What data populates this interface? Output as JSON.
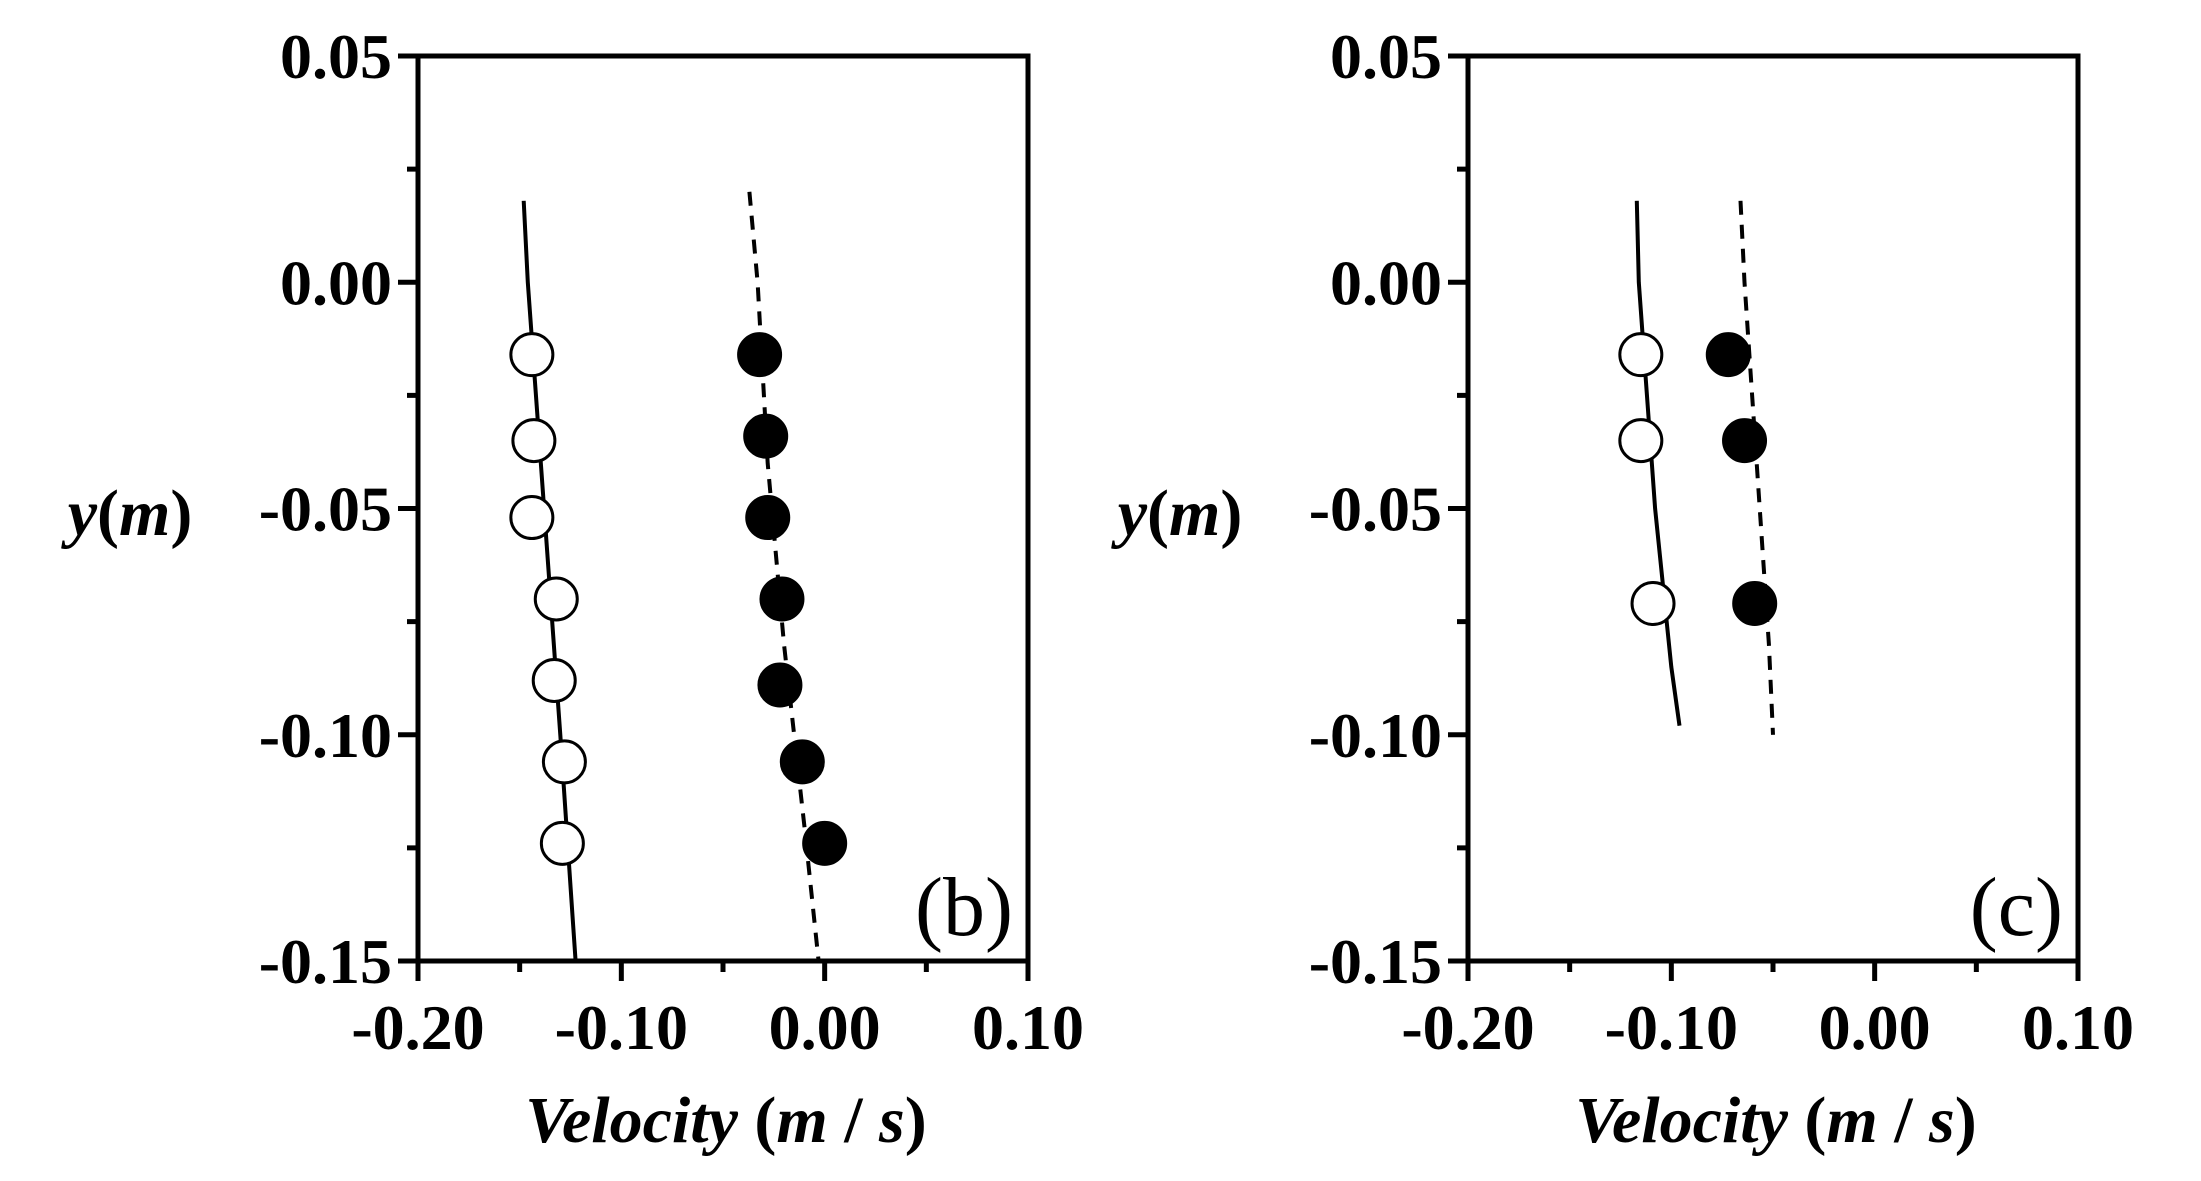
{
  "chart_data": [
    {
      "type": "scatter",
      "panel_label": "(b)",
      "xlabel": "Velocity (m / s)",
      "xlabel_parts": {
        "var": "Velocity",
        "open": " (",
        "num": "m",
        "sep": " / ",
        "den": "s",
        "close": ")"
      },
      "ylabel": "y (m)",
      "ylabel_parts": {
        "var": "y",
        "open": "(",
        "unit": "m",
        "close": ")"
      },
      "xlim": [
        -0.2,
        0.1
      ],
      "ylim": [
        -0.15,
        0.05
      ],
      "x_ticks": [
        -0.2,
        -0.1,
        0.0,
        0.1
      ],
      "x_tick_labels": [
        "-0.20",
        "-0.10",
        "0.00",
        "0.10"
      ],
      "y_ticks": [
        0.05,
        0.0,
        -0.05,
        -0.1,
        -0.15
      ],
      "y_tick_labels": [
        "0.05",
        "0.00",
        "-0.05",
        "-0.10",
        "-0.15"
      ],
      "series": [
        {
          "name": "open-circles",
          "marker": "open-circle",
          "x": [
            -0.144,
            -0.143,
            -0.144,
            -0.132,
            -0.133,
            -0.128,
            -0.129
          ],
          "y": [
            -0.016,
            -0.035,
            -0.052,
            -0.07,
            -0.088,
            -0.106,
            -0.124
          ]
        },
        {
          "name": "filled-circles",
          "marker": "filled-circle",
          "x": [
            -0.032,
            -0.029,
            -0.028,
            -0.021,
            -0.022,
            -0.011,
            0.0
          ],
          "y": [
            -0.016,
            -0.034,
            -0.052,
            -0.07,
            -0.089,
            -0.106,
            -0.124
          ]
        },
        {
          "name": "solid-line",
          "line": "solid",
          "x": [
            -0.148,
            -0.146,
            -0.138,
            -0.13,
            -0.124,
            -0.1225
          ],
          "y": [
            0.018,
            0.0,
            -0.05,
            -0.1,
            -0.14,
            -0.15
          ]
        },
        {
          "name": "dashed-line",
          "line": "dashed",
          "x": [
            -0.037,
            -0.033,
            -0.028,
            -0.02,
            -0.01,
            -0.003
          ],
          "y": [
            0.02,
            0.0,
            -0.04,
            -0.08,
            -0.12,
            -0.15
          ]
        }
      ]
    },
    {
      "type": "scatter",
      "panel_label": "(c)",
      "xlabel": "Velocity (m / s)",
      "xlabel_parts": {
        "var": "Velocity",
        "open": " (",
        "num": "m",
        "sep": " / ",
        "den": "s",
        "close": ")"
      },
      "ylabel": "y (m)",
      "ylabel_parts": {
        "var": "y",
        "open": "(",
        "unit": "m",
        "close": ")"
      },
      "xlim": [
        -0.2,
        0.1
      ],
      "ylim": [
        -0.15,
        0.05
      ],
      "x_ticks": [
        -0.2,
        -0.1,
        0.0,
        0.1
      ],
      "x_tick_labels": [
        "-0.20",
        "-0.10",
        "0.00",
        "0.10"
      ],
      "y_ticks": [
        0.05,
        0.0,
        -0.05,
        -0.1,
        -0.15
      ],
      "y_tick_labels": [
        "0.05",
        "0.00",
        "-0.05",
        "-0.10",
        "-0.15"
      ],
      "series": [
        {
          "name": "open-circles",
          "marker": "open-circle",
          "x": [
            -0.115,
            -0.115,
            -0.109
          ],
          "y": [
            -0.016,
            -0.035,
            -0.071
          ]
        },
        {
          "name": "filled-circles",
          "marker": "filled-circle",
          "x": [
            -0.072,
            -0.064,
            -0.059
          ],
          "y": [
            -0.016,
            -0.035,
            -0.071
          ]
        },
        {
          "name": "solid-line",
          "line": "solid",
          "x": [
            -0.117,
            -0.116,
            -0.108,
            -0.1,
            -0.096
          ],
          "y": [
            0.018,
            0.0,
            -0.05,
            -0.085,
            -0.098
          ]
        },
        {
          "name": "dashed-line",
          "line": "dashed",
          "x": [
            -0.066,
            -0.064,
            -0.058,
            -0.052,
            -0.05
          ],
          "y": [
            0.018,
            0.0,
            -0.04,
            -0.08,
            -0.1
          ]
        }
      ]
    }
  ]
}
